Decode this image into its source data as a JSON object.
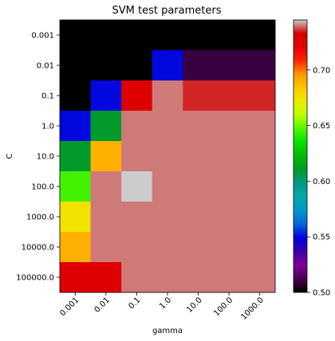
{
  "chart_data": {
    "type": "heatmap",
    "title": "SVM test parameters",
    "xlabel": "gamma",
    "ylabel": "C",
    "x_categories": [
      "0.001",
      "0.01",
      "0.1",
      "1.0",
      "10.0",
      "100.0",
      "1000.0"
    ],
    "y_categories": [
      "0.001",
      "0.01",
      "0.1",
      "1.0",
      "10.0",
      "100.0",
      "1000.0",
      "10000.0",
      "100000.0"
    ],
    "values": [
      [
        0.5,
        0.5,
        0.5,
        0.5,
        0.5,
        0.5,
        0.5
      ],
      [
        0.5,
        0.5,
        0.5,
        0.55,
        0.51,
        0.51,
        0.51
      ],
      [
        0.5,
        0.55,
        0.725,
        0.74,
        0.735,
        0.735,
        0.735
      ],
      [
        0.55,
        0.61,
        0.74,
        0.74,
        0.74,
        0.74,
        0.74
      ],
      [
        0.61,
        0.69,
        0.74,
        0.74,
        0.74,
        0.74,
        0.74
      ],
      [
        0.645,
        0.74,
        0.745,
        0.74,
        0.74,
        0.74,
        0.74
      ],
      [
        0.675,
        0.74,
        0.74,
        0.74,
        0.74,
        0.74,
        0.74
      ],
      [
        0.69,
        0.74,
        0.74,
        0.74,
        0.74,
        0.74,
        0.74
      ],
      [
        0.725,
        0.725,
        0.74,
        0.74,
        0.74,
        0.74,
        0.74
      ]
    ],
    "colormap": "nipy_spectral",
    "vmin": 0.5,
    "vmax": 0.745,
    "colorbar_ticks": [
      0.5,
      0.55,
      0.6,
      0.65,
      0.7
    ],
    "colorbar_tick_labels": [
      "0.50",
      "0.55",
      "0.60",
      "0.65",
      "0.70"
    ],
    "x_tick_rotation_deg": 45,
    "grid": false
  }
}
